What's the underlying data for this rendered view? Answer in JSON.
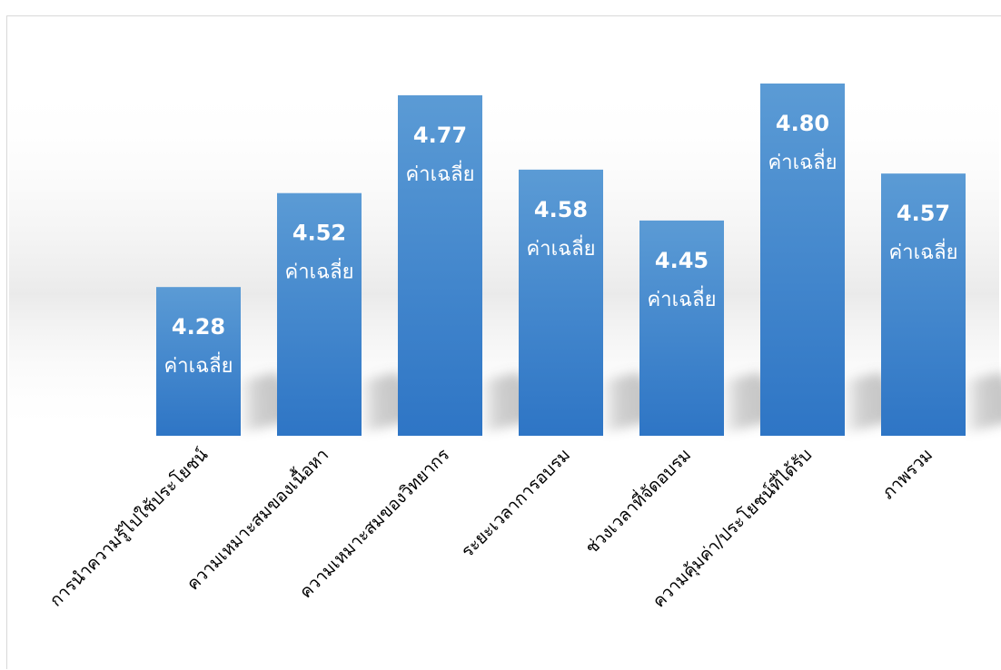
{
  "chart_data": {
    "type": "bar",
    "categories": [
      "การนำความรู้ไปใช้ประโยชน์",
      "ความเหมาะสมของเนื้อหา",
      "ความเหมาะสมของวิทยากร",
      "ระยะเวลาการอบรม",
      "ช่วงเวลาที่จัดอบรม",
      "ความคุ้มค่า/ประโยชน์ที่ได้รับ",
      "ภาพรวม"
    ],
    "values": [
      4.28,
      4.52,
      4.77,
      4.58,
      4.45,
      4.8,
      4.57
    ],
    "value_labels": [
      "4.28",
      "4.52",
      "4.77",
      "4.58",
      "4.45",
      "4.80",
      "4.57"
    ],
    "data_label_suffix": "ค่าเฉลี่ย",
    "ylim": [
      3.9,
      4.9
    ],
    "grid": false,
    "legend": "none",
    "colors": {
      "bar_top": "#5b9bd5",
      "bar_bottom": "#2e75c5",
      "label": "#ffffff"
    }
  }
}
